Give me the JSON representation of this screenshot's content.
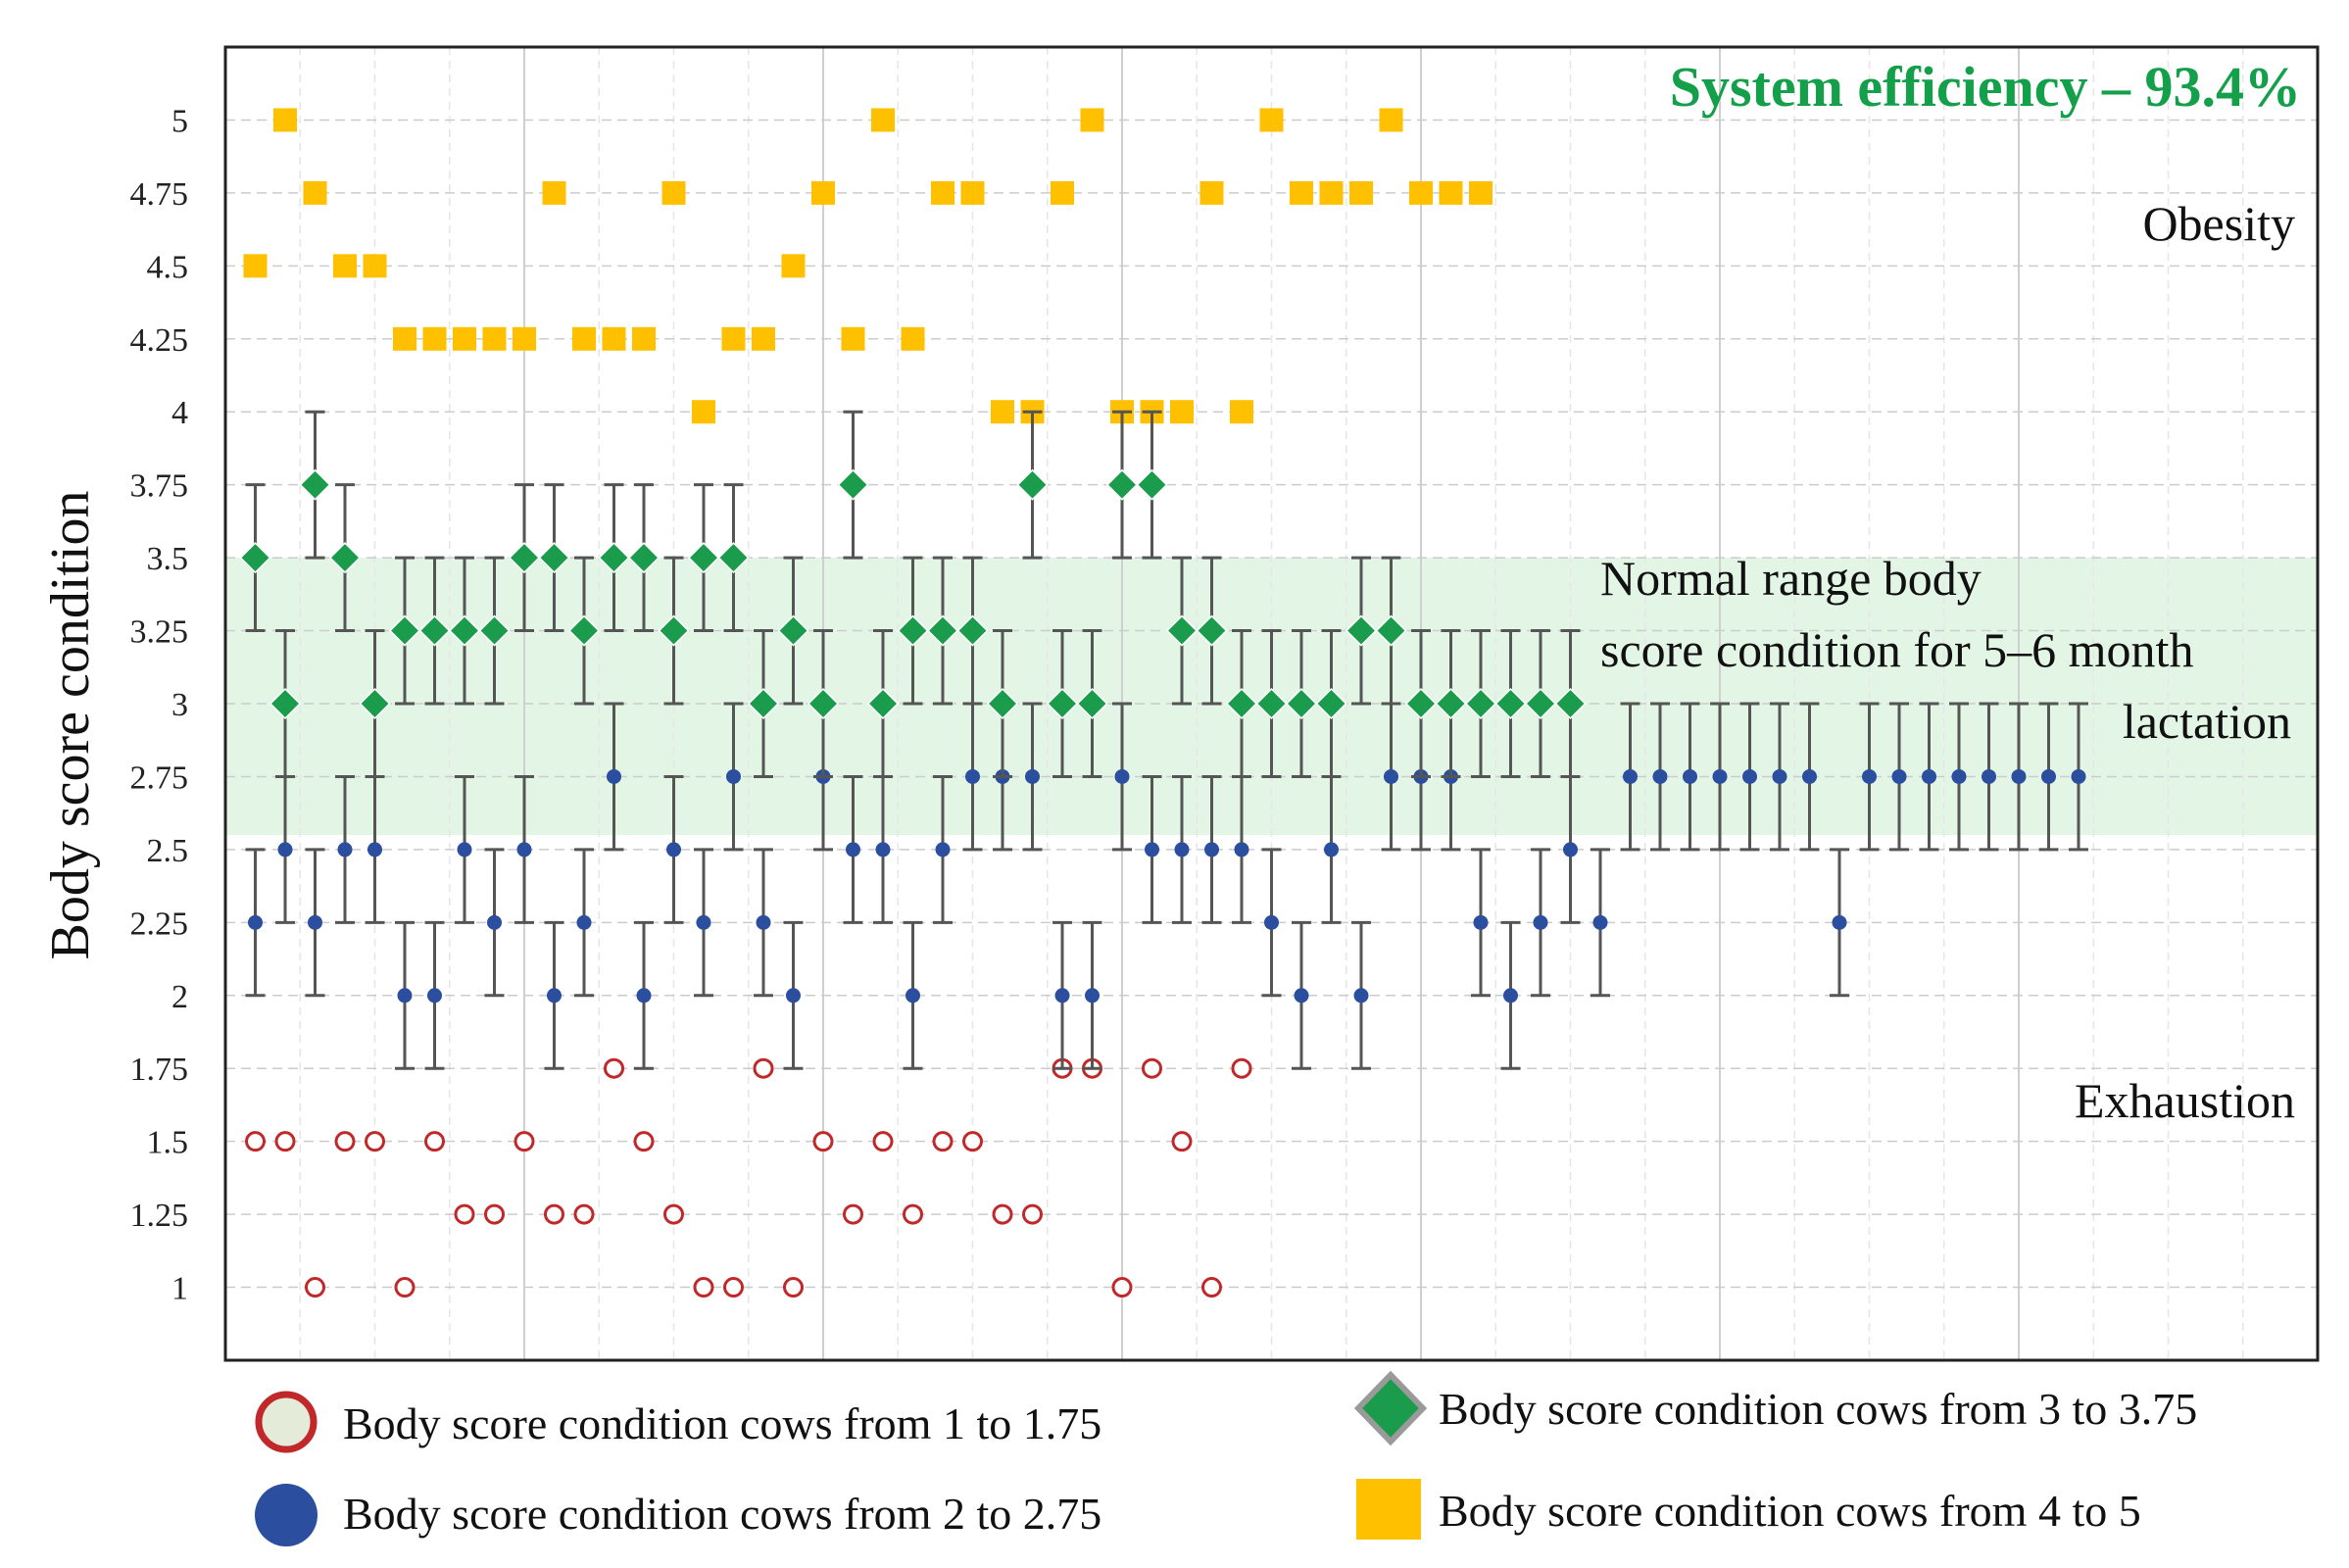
{
  "chart_data": {
    "type": "scatter",
    "title": "",
    "xlabel": "",
    "ylabel": "Body score condition",
    "ylim": [
      0.75,
      5.25
    ],
    "xlim": [
      0,
      70
    ],
    "y_ticks": [
      "1",
      "1.25",
      "1.5",
      "1.75",
      "2",
      "2.25",
      "2.5",
      "2.75",
      "3",
      "3.25",
      "3.5",
      "3.75",
      "4",
      "4.25",
      "4.5",
      "4.75",
      "5"
    ],
    "x_ticks_shown": false,
    "normal_range": [
      2.55,
      3.5
    ],
    "annotations": {
      "efficiency": "System efficiency – 93.4%",
      "obesity": "Obesity",
      "normal_line1": "Normal range body",
      "normal_line2": "score condition for 5–6 month",
      "normal_line3": "lactation",
      "exhaustion": "Exhaustion"
    },
    "series": [
      {
        "name": "Body score condition cows from 1 to 1.75",
        "marker": "open-circle",
        "color": "#c0282a",
        "values": [
          1.5,
          1.5,
          1,
          1.5,
          1.5,
          1,
          1.5,
          1.25,
          1.25,
          1.5,
          1.25,
          1.25,
          1.75,
          1.5,
          1.25,
          1,
          1,
          1.75,
          1,
          1.5,
          1.25,
          1.5,
          1.25,
          1.5,
          1.5,
          1.25,
          1.25,
          1.75,
          1.75,
          1,
          1.75,
          1.5,
          1,
          1.75
        ]
      },
      {
        "name": "Body score condition cows from 2 to 2.75",
        "marker": "filled-circle",
        "color": "#2b4f9e",
        "values": [
          2.25,
          2.5,
          2.25,
          2.5,
          2.5,
          2,
          2,
          2.5,
          2.25,
          2.5,
          2,
          2.25,
          2.75,
          2,
          2.5,
          2.25,
          2.75,
          2.25,
          2,
          2.75,
          2.5,
          2.5,
          2,
          2.5,
          2.75,
          2.75,
          2.75,
          2,
          2,
          2.75,
          2.5,
          2.5,
          2.5,
          2.5,
          2.25,
          2,
          2.5,
          2,
          2.75,
          2.75,
          2.75,
          2.25,
          2,
          2.25,
          2.5,
          2.25,
          2.75,
          2.75,
          2.75,
          2.75,
          2.75,
          2.75,
          2.75,
          2.25,
          2.75,
          2.75,
          2.75,
          2.75,
          2.75,
          2.75,
          2.75,
          2.75
        ],
        "error": 0.25
      },
      {
        "name": "Body score condition cows from 3 to 3.75",
        "marker": "diamond",
        "color": "#1a9c4c",
        "values": [
          3.5,
          3,
          3.75,
          3.5,
          3,
          3.25,
          3.25,
          3.25,
          3.25,
          3.5,
          3.5,
          3.25,
          3.5,
          3.5,
          3.25,
          3.5,
          3.5,
          3,
          3.25,
          3,
          3.75,
          3,
          3.25,
          3.25,
          3.25,
          3,
          3.75,
          3,
          3,
          3.75,
          3.75,
          3.25,
          3.25,
          3,
          3,
          3,
          3,
          3.25,
          3.25,
          3,
          3,
          3,
          3,
          3,
          3
        ],
        "error": 0.25
      },
      {
        "name": "Body score condition cows from 4 to 5",
        "marker": "square",
        "color": "#ffc000",
        "values": [
          4.5,
          5,
          4.75,
          4.5,
          4.5,
          4.25,
          4.25,
          4.25,
          4.25,
          4.25,
          4.75,
          4.25,
          4.25,
          4.25,
          4.75,
          4,
          4.25,
          4.25,
          4.5,
          4.75,
          4.25,
          5,
          4.25,
          4.75,
          4.75,
          4,
          4,
          4.75,
          5,
          4,
          4,
          4,
          4.75,
          4,
          5,
          4.75,
          4.75,
          4.75,
          5,
          4.75,
          4.75,
          4.75
        ]
      }
    ],
    "legend": {
      "placement": "bottom",
      "entries": [
        "Body score condition cows from 1 to 1.75",
        "Body score condition cows from 3 to 3.75",
        "Body score condition cows from 2 to 2.75",
        "Body score condition cows from 4 to 5"
      ]
    }
  }
}
